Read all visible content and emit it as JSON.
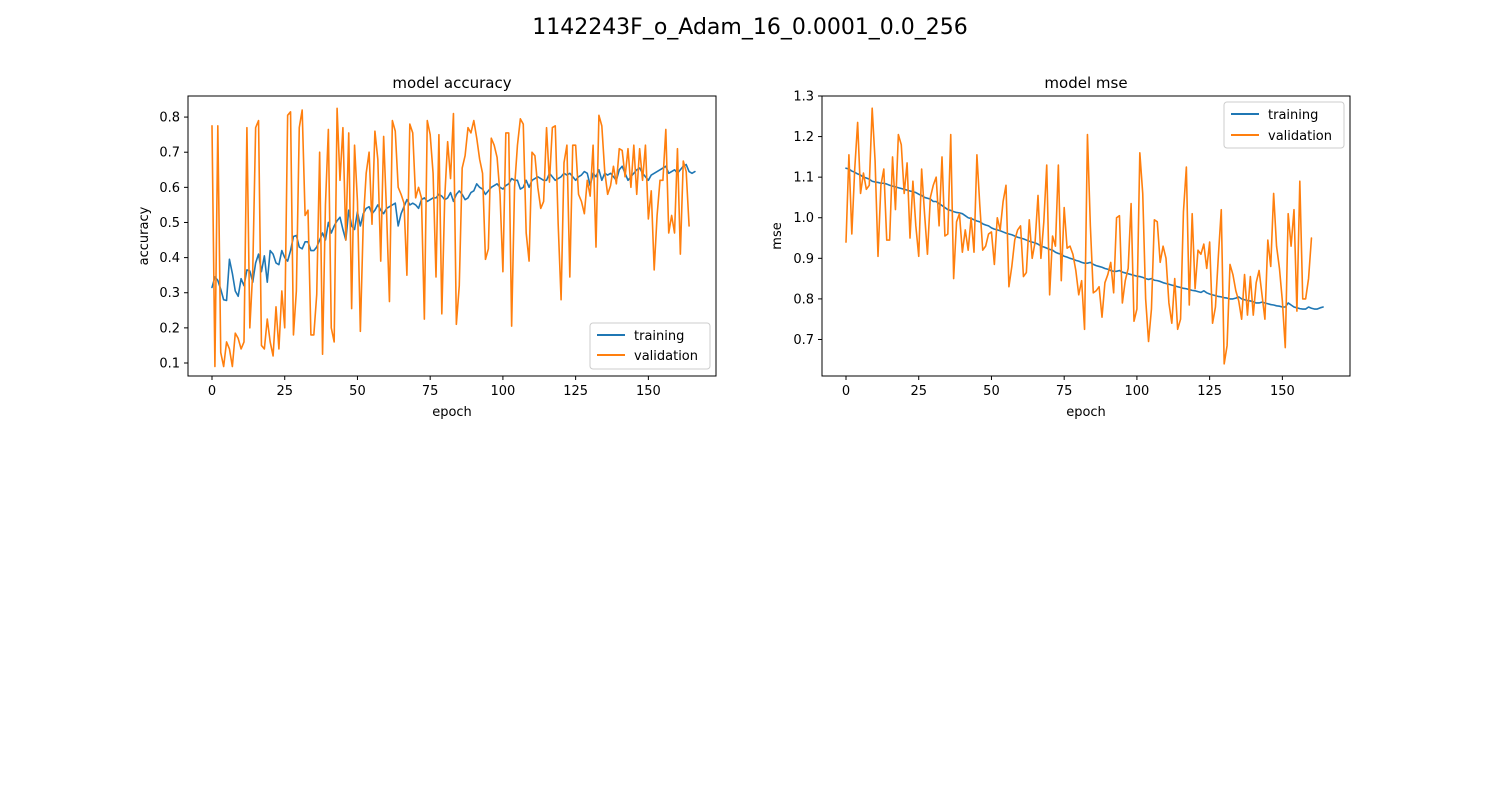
{
  "figure": {
    "suptitle": "1142243F_o_Adam_16_0.0001_0.0_256"
  },
  "colors": {
    "training": "#1f77b4",
    "validation": "#ff7f0e"
  },
  "chart_data": [
    {
      "type": "line",
      "title": "model accuracy",
      "xlabel": "epoch",
      "ylabel": "accuracy",
      "xlim": [
        -8.25,
        173.25
      ],
      "ylim": [
        0.063,
        0.86
      ],
      "xticks": [
        0,
        25,
        50,
        75,
        100,
        125,
        150
      ],
      "yticks": [
        0.1,
        0.2,
        0.3,
        0.4,
        0.5,
        0.6,
        0.7,
        0.8
      ],
      "legend": {
        "position": "lower right",
        "entries": [
          "training",
          "validation"
        ]
      },
      "grid": false,
      "series": [
        {
          "name": "training",
          "x_start": 0,
          "values": [
            0.315,
            0.345,
            0.335,
            0.31,
            0.28,
            0.278,
            0.395,
            0.355,
            0.305,
            0.29,
            0.34,
            0.32,
            0.365,
            0.362,
            0.33,
            0.385,
            0.41,
            0.36,
            0.405,
            0.33,
            0.42,
            0.41,
            0.385,
            0.38,
            0.42,
            0.4,
            0.39,
            0.42,
            0.46,
            0.463,
            0.43,
            0.425,
            0.445,
            0.445,
            0.42,
            0.42,
            0.43,
            0.45,
            0.47,
            0.45,
            0.5,
            0.47,
            0.49,
            0.505,
            0.515,
            0.48,
            0.45,
            0.535,
            0.49,
            0.48,
            0.53,
            0.49,
            0.525,
            0.54,
            0.545,
            0.525,
            0.535,
            0.55,
            0.535,
            0.525,
            0.54,
            0.545,
            0.55,
            0.555,
            0.49,
            0.525,
            0.545,
            0.565,
            0.55,
            0.555,
            0.55,
            0.54,
            0.565,
            0.57,
            0.56,
            0.565,
            0.57,
            0.57,
            0.58,
            0.575,
            0.565,
            0.57,
            0.585,
            0.56,
            0.58,
            0.59,
            0.58,
            0.565,
            0.57,
            0.585,
            0.59,
            0.61,
            0.6,
            0.595,
            0.58,
            0.59,
            0.6,
            0.605,
            0.61,
            0.6,
            0.595,
            0.605,
            0.61,
            0.625,
            0.62,
            0.62,
            0.595,
            0.6,
            0.62,
            0.6,
            0.62,
            0.625,
            0.63,
            0.625,
            0.62,
            0.62,
            0.64,
            0.63,
            0.62,
            0.625,
            0.63,
            0.64,
            0.635,
            0.64,
            0.63,
            0.62,
            0.63,
            0.635,
            0.645,
            0.64,
            0.605,
            0.64,
            0.63,
            0.65,
            0.62,
            0.64,
            0.635,
            0.64,
            0.63,
            0.62,
            0.65,
            0.66,
            0.64,
            0.62,
            0.63,
            0.64,
            0.65,
            0.655,
            0.64,
            0.63,
            0.62,
            0.635,
            0.64,
            0.645,
            0.65,
            0.655,
            0.66,
            0.64,
            0.645,
            0.65,
            0.64,
            0.65,
            0.66,
            0.665,
            0.645,
            0.64,
            0.645
          ]
        },
        {
          "name": "validation",
          "x_start": 0,
          "values": [
            0.775,
            0.09,
            0.775,
            0.13,
            0.09,
            0.16,
            0.14,
            0.09,
            0.185,
            0.17,
            0.14,
            0.16,
            0.77,
            0.2,
            0.36,
            0.77,
            0.79,
            0.15,
            0.14,
            0.225,
            0.16,
            0.12,
            0.26,
            0.14,
            0.305,
            0.2,
            0.805,
            0.815,
            0.18,
            0.305,
            0.77,
            0.82,
            0.52,
            0.535,
            0.18,
            0.18,
            0.295,
            0.7,
            0.125,
            0.55,
            0.765,
            0.2,
            0.16,
            0.825,
            0.62,
            0.77,
            0.45,
            0.755,
            0.255,
            0.72,
            0.56,
            0.19,
            0.5,
            0.64,
            0.7,
            0.495,
            0.76,
            0.68,
            0.39,
            0.745,
            0.53,
            0.275,
            0.79,
            0.76,
            0.6,
            0.58,
            0.555,
            0.35,
            0.78,
            0.755,
            0.57,
            0.6,
            0.57,
            0.225,
            0.79,
            0.75,
            0.64,
            0.345,
            0.75,
            0.24,
            0.57,
            0.73,
            0.625,
            0.81,
            0.21,
            0.32,
            0.655,
            0.69,
            0.77,
            0.755,
            0.79,
            0.74,
            0.68,
            0.64,
            0.395,
            0.425,
            0.74,
            0.72,
            0.685,
            0.58,
            0.36,
            0.755,
            0.755,
            0.205,
            0.6,
            0.72,
            0.795,
            0.78,
            0.47,
            0.39,
            0.7,
            0.69,
            0.6,
            0.54,
            0.56,
            0.77,
            0.615,
            0.77,
            0.775,
            0.495,
            0.28,
            0.67,
            0.72,
            0.345,
            0.72,
            0.72,
            0.58,
            0.56,
            0.525,
            0.62,
            0.575,
            0.72,
            0.43,
            0.805,
            0.775,
            0.645,
            0.58,
            0.605,
            0.66,
            0.61,
            0.71,
            0.705,
            0.63,
            0.71,
            0.6,
            0.72,
            0.58,
            0.71,
            0.62,
            0.72,
            0.51,
            0.59,
            0.365,
            0.52,
            0.62,
            0.62,
            0.765,
            0.47,
            0.52,
            0.47,
            0.71,
            0.41,
            0.675,
            0.645,
            0.49
          ]
        }
      ]
    },
    {
      "type": "line",
      "title": "model mse",
      "xlabel": "epoch",
      "ylabel": "mse",
      "xlim": [
        -8.25,
        173.25
      ],
      "ylim": [
        0.61,
        1.3
      ],
      "xticks": [
        0,
        25,
        50,
        75,
        100,
        125,
        150
      ],
      "yticks": [
        0.7,
        0.8,
        0.9,
        1.0,
        1.1,
        1.2,
        1.3
      ],
      "legend": {
        "position": "upper right",
        "entries": [
          "training",
          "validation"
        ]
      },
      "grid": false,
      "series": [
        {
          "name": "training",
          "x_start": 0,
          "values": [
            1.122,
            1.12,
            1.115,
            1.112,
            1.108,
            1.105,
            1.1,
            1.098,
            1.095,
            1.09,
            1.088,
            1.087,
            1.085,
            1.085,
            1.083,
            1.08,
            1.078,
            1.076,
            1.074,
            1.072,
            1.07,
            1.068,
            1.066,
            1.064,
            1.062,
            1.058,
            1.055,
            1.05,
            1.048,
            1.046,
            1.04,
            1.04,
            1.035,
            1.03,
            1.025,
            1.02,
            1.018,
            1.015,
            1.013,
            1.012,
            1.01,
            1.005,
            1.0,
            0.998,
            0.995,
            0.992,
            0.99,
            0.985,
            0.982,
            0.98,
            0.975,
            0.972,
            0.97,
            0.968,
            0.965,
            0.962,
            0.96,
            0.958,
            0.955,
            0.952,
            0.95,
            0.948,
            0.945,
            0.942,
            0.94,
            0.938,
            0.935,
            0.93,
            0.928,
            0.925,
            0.922,
            0.92,
            0.915,
            0.912,
            0.91,
            0.905,
            0.903,
            0.9,
            0.898,
            0.895,
            0.893,
            0.89,
            0.888,
            0.888,
            0.89,
            0.885,
            0.882,
            0.88,
            0.878,
            0.875,
            0.873,
            0.87,
            0.868,
            0.868,
            0.87,
            0.866,
            0.864,
            0.862,
            0.86,
            0.858,
            0.856,
            0.855,
            0.853,
            0.85,
            0.848,
            0.85,
            0.846,
            0.845,
            0.843,
            0.84,
            0.838,
            0.836,
            0.834,
            0.832,
            0.83,
            0.828,
            0.826,
            0.825,
            0.823,
            0.821,
            0.82,
            0.818,
            0.816,
            0.82,
            0.815,
            0.812,
            0.81,
            0.808,
            0.806,
            0.805,
            0.803,
            0.802,
            0.8,
            0.8,
            0.802,
            0.805,
            0.8,
            0.798,
            0.796,
            0.795,
            0.793,
            0.79,
            0.79,
            0.792,
            0.79,
            0.788,
            0.786,
            0.785,
            0.783,
            0.782,
            0.78,
            0.78,
            0.79,
            0.785,
            0.78,
            0.778,
            0.776,
            0.775,
            0.775,
            0.78,
            0.777,
            0.775,
            0.775,
            0.778,
            0.78
          ]
        },
        {
          "name": "validation",
          "x_start": 0,
          "values": [
            0.94,
            1.155,
            0.96,
            1.12,
            1.235,
            1.06,
            1.11,
            1.07,
            1.08,
            1.27,
            1.14,
            0.905,
            1.08,
            1.12,
            0.945,
            0.945,
            1.15,
            1.02,
            1.205,
            1.18,
            1.06,
            1.135,
            0.95,
            1.09,
            0.98,
            0.905,
            1.12,
            1.01,
            0.91,
            1.05,
            1.08,
            1.1,
            0.98,
            1.15,
            0.955,
            0.96,
            1.205,
            0.85,
            0.99,
            1.01,
            0.915,
            0.97,
            0.92,
            1.0,
            0.915,
            1.155,
            1.03,
            0.92,
            0.93,
            0.96,
            0.965,
            0.885,
            1.0,
            0.97,
            1.04,
            1.08,
            0.83,
            0.88,
            0.945,
            0.97,
            0.98,
            0.855,
            0.865,
            0.995,
            0.9,
            0.94,
            1.055,
            0.9,
            0.99,
            1.13,
            0.81,
            0.955,
            0.93,
            1.13,
            0.845,
            1.025,
            0.925,
            0.93,
            0.91,
            0.87,
            0.81,
            0.845,
            0.725,
            1.205,
            0.98,
            0.815,
            0.82,
            0.83,
            0.755,
            0.84,
            0.86,
            0.89,
            0.815,
            1.0,
            1.005,
            0.79,
            0.845,
            0.875,
            1.035,
            0.745,
            0.775,
            1.16,
            1.06,
            0.8,
            0.695,
            0.775,
            0.995,
            0.99,
            0.89,
            0.93,
            0.9,
            0.79,
            0.74,
            0.85,
            0.725,
            0.75,
            1.015,
            1.125,
            0.785,
            1.01,
            0.825,
            0.92,
            0.91,
            0.935,
            0.875,
            0.94,
            0.74,
            0.78,
            0.905,
            1.02,
            0.64,
            0.685,
            0.885,
            0.86,
            0.82,
            0.795,
            0.75,
            0.86,
            0.76,
            0.855,
            0.76,
            0.84,
            0.87,
            0.81,
            0.75,
            0.945,
            0.88,
            1.06,
            0.93,
            0.875,
            0.795,
            0.68,
            1.01,
            0.93,
            1.02,
            0.77,
            1.09,
            0.8,
            0.8,
            0.85,
            0.95
          ]
        }
      ]
    }
  ]
}
